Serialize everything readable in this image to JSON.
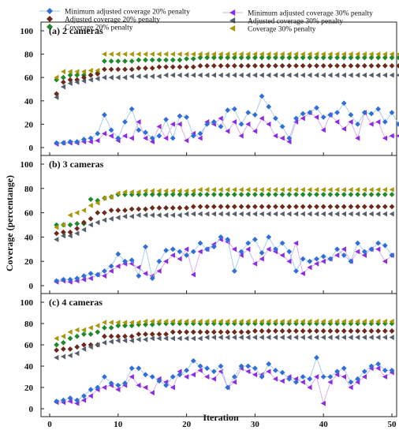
{
  "chart_data": {
    "type": "scatter",
    "xlabel": "Iteration",
    "ylabel": "Coverage (percentange)",
    "xlim": [
      0,
      50
    ],
    "xticks": [
      0,
      10,
      20,
      30,
      40,
      50
    ],
    "ylim": [
      0,
      100
    ],
    "yticks": [
      0,
      20,
      40,
      60,
      80,
      100
    ],
    "legend_placement": "top",
    "series_styles": [
      {
        "name": "Minimum adjusted coverage 20% penalty",
        "color": "#2f6fd6",
        "line_color": "#9ecae8",
        "marker": "diamond"
      },
      {
        "name": "Adjusted coverage 20% penalty",
        "color": "#6b2a1a",
        "marker": "diamond"
      },
      {
        "name": "Coverage 20% penalty",
        "color": "#1f8a2b",
        "marker": "diamond"
      },
      {
        "name": "Minimum adjusted coverage 30% penalty",
        "color": "#8b2be2",
        "line_color": "#d9a8e8",
        "marker": "triangle-left"
      },
      {
        "name": "Adjusted coverage 30% penalty",
        "color": "#555f6b",
        "marker": "triangle-left"
      },
      {
        "name": "Coverage 30% penalty",
        "color": "#a8980a",
        "marker": "triangle-left"
      }
    ],
    "panels": [
      {
        "label": "(a) 2 cameras",
        "series": [
          {
            "name": "Minimum adjusted coverage 20% penalty",
            "values": [
              4,
              4,
              5,
              5,
              7,
              8,
              12,
              28,
              15,
              8,
              22,
              33,
              15,
              13,
              8,
              10,
              24,
              8,
              27,
              26,
              10,
              12,
              20,
              22,
              18,
              32,
              33,
              20,
              30,
              28,
              44,
              35,
              25,
              18,
              8,
              25,
              29,
              30,
              34,
              26,
              28,
              30,
              38,
              28,
              20,
              30,
              29,
              33,
              22,
              30,
              20
            ]
          },
          {
            "name": "Adjusted coverage 20% penalty",
            "values": [
              46,
              56,
              58,
              58,
              60,
              62,
              63,
              67,
              67,
              67,
              67,
              67,
              68,
              68,
              68,
              69,
              69,
              69,
              69,
              69,
              69,
              70,
              70,
              70,
              70,
              70,
              70,
              70,
              70,
              70,
              70,
              70,
              70,
              70,
              70,
              70,
              70,
              70,
              70,
              70,
              70,
              70,
              70,
              70,
              70,
              70,
              70,
              70,
              70,
              70,
              70
            ]
          },
          {
            "name": "Coverage 20% penalty",
            "values": [
              58,
              60,
              62,
              62,
              62,
              62,
              64,
              74,
              74,
              74,
              74,
              74,
              75,
              75,
              75,
              75,
              75,
              75,
              75,
              76,
              76,
              77,
              77,
              77,
              77,
              77,
              77,
              77,
              77,
              77,
              77,
              77,
              77,
              77,
              77,
              77,
              77,
              77,
              77,
              77,
              77,
              77,
              77,
              77,
              77,
              77,
              77,
              77,
              77,
              77,
              77
            ]
          },
          {
            "name": "Minimum adjusted coverage 30% penalty",
            "values": [
              3,
              4,
              4,
              4,
              5,
              5,
              6,
              12,
              10,
              6,
              10,
              8,
              22,
              8,
              5,
              18,
              8,
              20,
              20,
              6,
              12,
              8,
              22,
              20,
              25,
              14,
              22,
              10,
              20,
              14,
              25,
              20,
              10,
              8,
              5,
              22,
              25,
              30,
              26,
              15,
              28,
              22,
              16,
              22,
              8,
              30,
              20,
              22,
              8,
              10,
              10
            ]
          },
          {
            "name": "Adjusted coverage 30% penalty",
            "values": [
              43,
              52,
              55,
              56,
              57,
              58,
              59,
              60,
              60,
              60,
              60,
              61,
              61,
              61,
              61,
              61,
              62,
              62,
              62,
              62,
              62,
              62,
              62,
              62,
              62,
              62,
              62,
              62,
              62,
              62,
              62,
              62,
              62,
              62,
              62,
              62,
              62,
              62,
              62,
              62,
              62,
              62,
              62,
              62,
              62,
              62,
              62,
              62,
              62,
              62,
              62
            ]
          },
          {
            "name": "Coverage 30% penalty",
            "values": [
              60,
              65,
              65,
              65,
              65,
              66,
              66,
              80,
              80,
              80,
              80,
              80,
              80,
              80,
              80,
              80,
              80,
              80,
              80,
              80,
              80,
              80,
              80,
              80,
              80,
              80,
              80,
              80,
              80,
              80,
              80,
              80,
              80,
              80,
              80,
              80,
              80,
              80,
              80,
              80,
              80,
              80,
              80,
              80,
              80,
              80,
              80,
              80,
              80,
              80,
              80
            ]
          }
        ]
      },
      {
        "label": "(b) 3 cameras",
        "series": [
          {
            "name": "Minimum adjusted coverage 20% penalty",
            "values": [
              4,
              5,
              5,
              6,
              8,
              10,
              9,
              12,
              16,
              26,
              20,
              21,
              8,
              32,
              6,
              20,
              29,
              30,
              28,
              25,
              28,
              35,
              30,
              32,
              40,
              38,
              12,
              28,
              35,
              38,
              27,
              40,
              30,
              35,
              28,
              12,
              22,
              20,
              22,
              24,
              22,
              30,
              25,
              20,
              35,
              28,
              30,
              35,
              33,
              25
            ]
          },
          {
            "name": "Adjusted coverage 20% penalty",
            "values": [
              43,
              44,
              44,
              47,
              52,
              55,
              60,
              60,
              62,
              62,
              62,
              63,
              63,
              63,
              64,
              64,
              64,
              64,
              64,
              64,
              65,
              65,
              65,
              65,
              65,
              65,
              65,
              65,
              65,
              65,
              65,
              65,
              65,
              65,
              65,
              65,
              65,
              65,
              65,
              65,
              65,
              65,
              65,
              65,
              65,
              65,
              65,
              65,
              65,
              65
            ]
          },
          {
            "name": "Coverage 20% penalty",
            "values": [
              50,
              50,
              50,
              51,
              51,
              71,
              70,
              72,
              73,
              75,
              75,
              75,
              75,
              75,
              75,
              75,
              75,
              75,
              75,
              75,
              75,
              75,
              75,
              75,
              75,
              75,
              75,
              75,
              75,
              75,
              75,
              75,
              75,
              75,
              75,
              75,
              75,
              75,
              75,
              75,
              75,
              75,
              75,
              75,
              75,
              75,
              75,
              75,
              75,
              75
            ]
          },
          {
            "name": "Minimum adjusted coverage 30% penalty",
            "values": [
              3,
              4,
              3,
              4,
              5,
              6,
              9,
              8,
              12,
              16,
              18,
              18,
              15,
              10,
              8,
              12,
              20,
              25,
              22,
              30,
              9,
              28,
              30,
              34,
              38,
              36,
              30,
              25,
              30,
              18,
              22,
              30,
              28,
              25,
              20,
              35,
              10,
              15,
              18,
              20,
              22,
              25,
              30,
              20,
              28,
              25,
              30,
              30,
              20,
              25
            ]
          },
          {
            "name": "Adjusted coverage 30% penalty",
            "values": [
              38,
              41,
              41,
              43,
              46,
              50,
              52,
              54,
              55,
              56,
              57,
              57,
              58,
              58,
              58,
              58,
              58,
              58,
              58,
              59,
              59,
              59,
              59,
              59,
              59,
              59,
              59,
              59,
              59,
              59,
              59,
              59,
              59,
              59,
              59,
              59,
              59,
              59,
              59,
              59,
              59,
              59,
              59,
              59,
              59,
              59,
              59,
              59,
              59,
              59
            ]
          },
          {
            "name": "Coverage 30% penalty",
            "values": [
              48,
              50,
              58,
              60,
              62,
              66,
              68,
              72,
              73,
              76,
              77,
              77,
              77,
              78,
              78,
              78,
              78,
              78,
              78,
              78,
              78,
              79,
              79,
              79,
              79,
              79,
              79,
              79,
              79,
              79,
              79,
              79,
              79,
              79,
              79,
              79,
              79,
              79,
              79,
              79,
              79,
              79,
              79,
              79,
              79,
              79,
              79,
              79,
              79,
              79
            ]
          }
        ]
      },
      {
        "label": "(c) 4 cameras",
        "series": [
          {
            "name": "Minimum adjusted coverage 20% penalty",
            "values": [
              7,
              8,
              10,
              8,
              12,
              18,
              20,
              30,
              24,
              22,
              24,
              38,
              38,
              32,
              30,
              26,
              22,
              30,
              32,
              36,
              45,
              40,
              38,
              35,
              40,
              20,
              30,
              40,
              40,
              38,
              30,
              42,
              36,
              34,
              28,
              25,
              30,
              28,
              48,
              30,
              30,
              35,
              38,
              25,
              28,
              35,
              40,
              42,
              36,
              36
            ]
          },
          {
            "name": "Adjusted coverage 20% penalty",
            "values": [
              55,
              56,
              56,
              58,
              60,
              60,
              60,
              68,
              68,
              68,
              68,
              68,
              70,
              70,
              70,
              70,
              70,
              72,
              72,
              72,
              72,
              72,
              72,
              72,
              72,
              72,
              72,
              72,
              72,
              73,
              73,
              73,
              73,
              73,
              73,
              73,
              73,
              73,
              73,
              73,
              73,
              73,
              73,
              73,
              73,
              73,
              73,
              73,
              73,
              73
            ]
          },
          {
            "name": "Coverage 20% penalty",
            "values": [
              60,
              62,
              66,
              68,
              70,
              70,
              72,
              76,
              76,
              78,
              78,
              78,
              79,
              79,
              79,
              80,
              80,
              80,
              80,
              80,
              80,
              80,
              80,
              80,
              80,
              80,
              80,
              80,
              80,
              80,
              80,
              80,
              80,
              80,
              80,
              80,
              80,
              80,
              80,
              80,
              80,
              80,
              80,
              80,
              80,
              80,
              80,
              80,
              80,
              80
            ]
          },
          {
            "name": "Minimum adjusted coverage 30% penalty",
            "values": [
              6,
              6,
              7,
              5,
              8,
              12,
              18,
              20,
              22,
              18,
              22,
              30,
              22,
              20,
              15,
              28,
              25,
              20,
              35,
              30,
              32,
              36,
              30,
              28,
              35,
              20,
              25,
              38,
              35,
              32,
              32,
              35,
              28,
              26,
              30,
              28,
              25,
              20,
              30,
              5,
              25,
              32,
              30,
              20,
              25,
              30,
              38,
              38,
              30,
              34
            ]
          },
          {
            "name": "Adjusted coverage 30% penalty",
            "values": [
              48,
              49,
              50,
              52,
              56,
              58,
              60,
              62,
              63,
              64,
              64,
              64,
              65,
              65,
              66,
              66,
              66,
              66,
              66,
              66,
              66,
              66,
              67,
              67,
              67,
              67,
              67,
              67,
              67,
              67,
              67,
              67,
              67,
              67,
              67,
              67,
              67,
              67,
              67,
              67,
              67,
              67,
              67,
              67,
              67,
              67,
              67,
              67,
              67,
              67
            ]
          },
          {
            "name": "Coverage 30% penalty",
            "values": [
              66,
              68,
              72,
              74,
              74,
              76,
              78,
              81,
              81,
              81,
              81,
              81,
              81,
              82,
              82,
              82,
              82,
              82,
              82,
              82,
              82,
              82,
              82,
              82,
              82,
              82,
              82,
              82,
              82,
              82,
              82,
              82,
              82,
              82,
              82,
              82,
              82,
              82,
              82,
              82,
              82,
              82,
              82,
              82,
              82,
              82,
              82,
              82,
              82,
              82
            ]
          }
        ]
      }
    ]
  }
}
